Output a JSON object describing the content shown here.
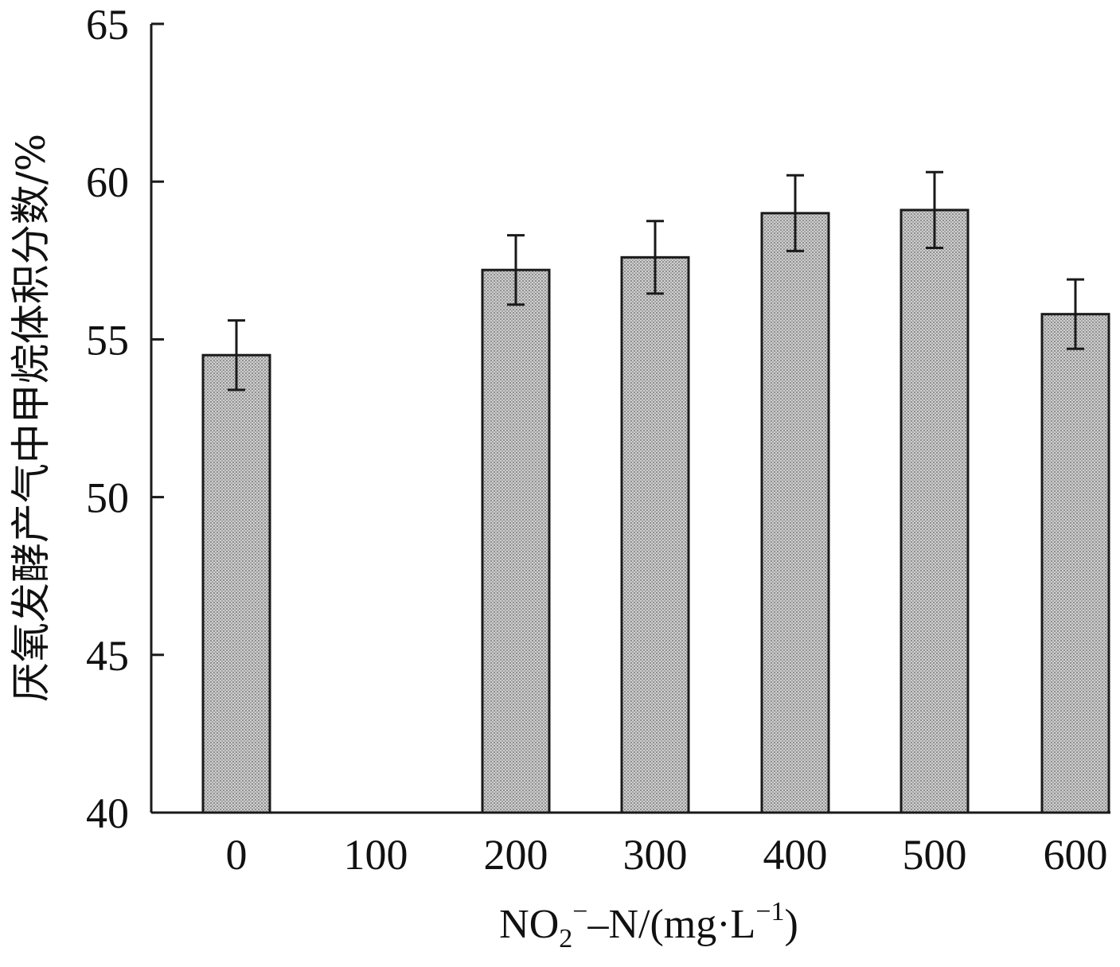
{
  "chart_data": {
    "type": "bar",
    "categories": [
      "0",
      "100",
      "200",
      "300",
      "400",
      "500",
      "600"
    ],
    "values": [
      54.5,
      null,
      57.2,
      57.6,
      59.0,
      59.1,
      55.8
    ],
    "errors": [
      1.1,
      null,
      1.1,
      1.15,
      1.2,
      1.2,
      1.1
    ],
    "xlabel": {
      "prefix": "NO",
      "sub": "2",
      "sup": "−",
      "middle": "–N/(mg·L",
      "unit_sup": "−1",
      "suffix": ")"
    },
    "ylabel": "厌氧发酵产气中甲烷体积分数/%",
    "ylim": [
      40,
      65
    ],
    "yticks": [
      40,
      45,
      50,
      55,
      60,
      65
    ],
    "grid": false,
    "legend": "none",
    "bar_color": "#b8b8b8"
  }
}
